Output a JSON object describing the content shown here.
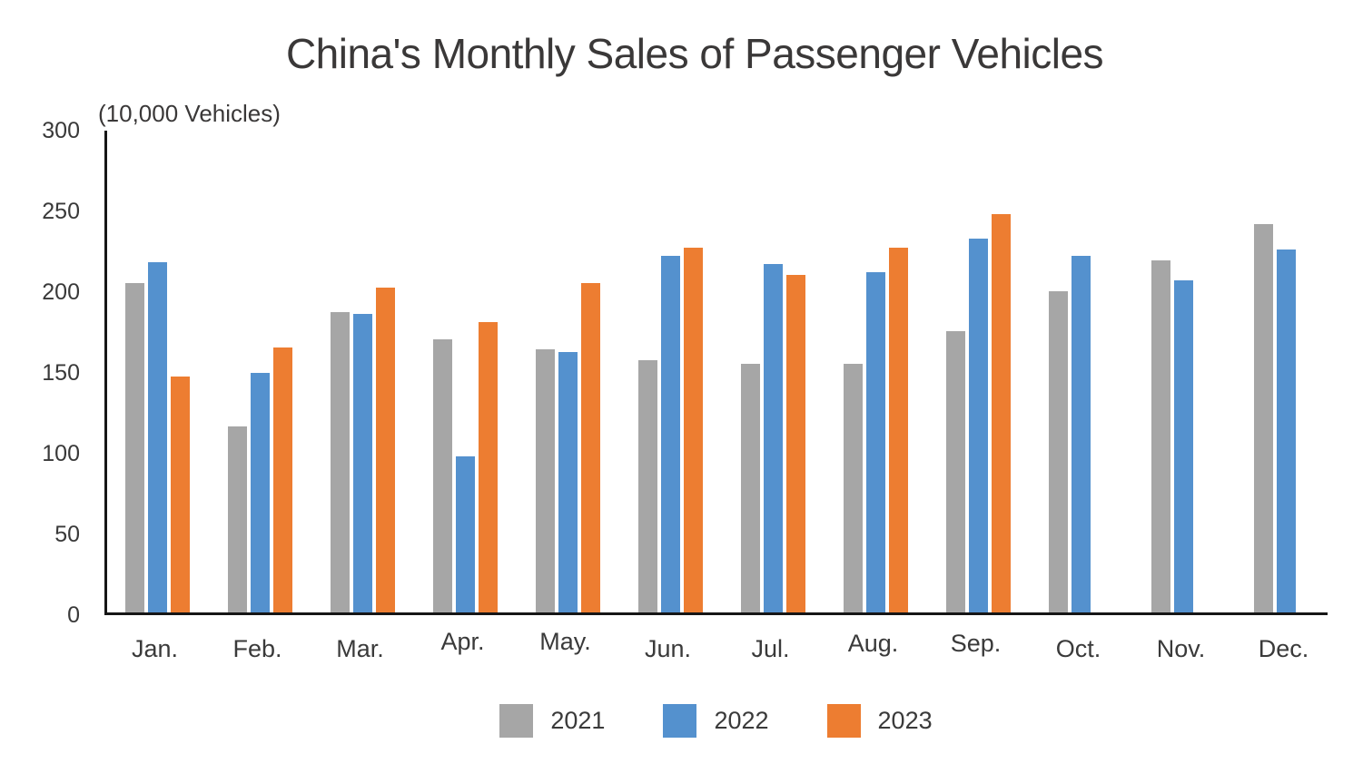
{
  "title": "China's Monthly Sales of Passenger Vehicles",
  "unit_label": "(10,000 Vehicles)",
  "colors": {
    "series_2021": "#a6a6a6",
    "series_2022": "#5491ce",
    "series_2023": "#ed7d31",
    "axis_line": "#161616",
    "text": "#3a3838"
  },
  "chart_data": {
    "type": "bar",
    "title": "China's Monthly Sales of Passenger Vehicles",
    "ylabel": "(10,000 Vehicles)",
    "xlabel": "",
    "categories": [
      "Jan.",
      "Feb.",
      "Mar.",
      "Apr.",
      "May.",
      "Jun.",
      "Jul.",
      "Aug.",
      "Sep.",
      "Oct.",
      "Nov.",
      "Dec."
    ],
    "series": [
      {
        "name": "2021",
        "color": "#a6a6a6",
        "values": [
          205,
          116,
          187,
          170,
          164,
          157,
          155,
          155,
          175,
          200,
          219,
          242
        ]
      },
      {
        "name": "2022",
        "color": "#5491ce",
        "values": [
          218,
          149,
          186,
          97,
          162,
          222,
          217,
          212,
          233,
          222,
          207,
          226
        ]
      },
      {
        "name": "2023",
        "color": "#ed7d31",
        "values": [
          147,
          165,
          202,
          181,
          205,
          227,
          210,
          227,
          248,
          null,
          null,
          null
        ]
      }
    ],
    "ylim": [
      0,
      300
    ],
    "yticks": [
      0,
      50,
      100,
      150,
      200,
      250,
      300
    ],
    "grid": false,
    "legend_position": "bottom"
  }
}
